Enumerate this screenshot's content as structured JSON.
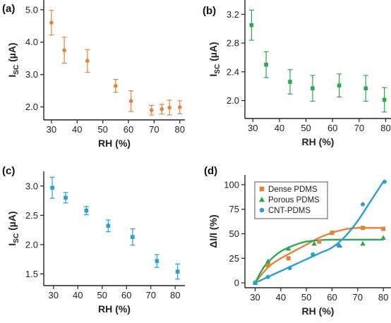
{
  "colors": {
    "orange": "#e8823a",
    "green": "#2ea84f",
    "blue": "#2a9fd6"
  },
  "chart_data": [
    {
      "panel": "(a)",
      "type": "scatter",
      "xlabel": "RH (%)",
      "ylabel_main": "I",
      "ylabel_sub": "SC",
      "ylabel_unit": " (µA)",
      "xlim": [
        27,
        82
      ],
      "ylim": [
        1.6,
        5.3
      ],
      "xticks": [
        30,
        40,
        50,
        60,
        70,
        80
      ],
      "xtick_labels": [
        "30",
        "40",
        "50",
        "60",
        "70",
        "80"
      ],
      "yticks": [
        2.0,
        3.0,
        4.0,
        5.0
      ],
      "ytick_labels": [
        "2.0",
        "3.0",
        "4.0",
        "5.0"
      ],
      "marker": "circle",
      "color": "#e8823a",
      "x": [
        30,
        35,
        44,
        55,
        61,
        69,
        73,
        76,
        80
      ],
      "y": [
        4.6,
        3.75,
        3.42,
        2.65,
        2.18,
        1.9,
        1.93,
        1.98,
        1.99
      ],
      "err": [
        0.38,
        0.4,
        0.35,
        0.2,
        0.32,
        0.15,
        0.15,
        0.23,
        0.2
      ]
    },
    {
      "panel": "(b)",
      "type": "scatter",
      "xlabel": "RH (%)",
      "ylabel_main": "I",
      "ylabel_sub": "SC",
      "ylabel_unit": " (µA)",
      "xlim": [
        27,
        82
      ],
      "ylim": [
        1.75,
        3.4
      ],
      "xticks": [
        30,
        40,
        50,
        60,
        70,
        80
      ],
      "xtick_labels": [
        "30",
        "40",
        "50",
        "60",
        "70",
        "80"
      ],
      "yticks": [
        2.0,
        2.4,
        2.8,
        3.2
      ],
      "ytick_labels": [
        "2.0",
        "2.4",
        "2.8",
        "3.2"
      ],
      "marker": "square",
      "color": "#2ea84f",
      "x": [
        29.5,
        35,
        44,
        52.5,
        62.5,
        72.5,
        79.5
      ],
      "y": [
        3.05,
        2.5,
        2.26,
        2.17,
        2.21,
        2.17,
        2.01
      ],
      "err": [
        0.21,
        0.18,
        0.17,
        0.18,
        0.16,
        0.18,
        0.17
      ]
    },
    {
      "panel": "(c)",
      "type": "scatter",
      "xlabel": "RH (%)",
      "ylabel_main": "I",
      "ylabel_sub": "SC",
      "ylabel_unit": " (µA)",
      "xlim": [
        26,
        84
      ],
      "ylim": [
        1.3,
        3.25
      ],
      "xticks": [
        30,
        40,
        50,
        60,
        70,
        80
      ],
      "xtick_labels": [
        "30",
        "40",
        "50",
        "60",
        "70",
        "80"
      ],
      "yticks": [
        1.5,
        2.0,
        2.5,
        3.0
      ],
      "ytick_labels": [
        "1.5",
        "2.0",
        "2.5",
        "3.0"
      ],
      "marker": "square",
      "color": "#2a9fd6",
      "x": [
        29.5,
        35,
        43.5,
        52.5,
        62.5,
        72.5,
        81
      ],
      "y": [
        2.97,
        2.8,
        2.58,
        2.32,
        2.13,
        1.72,
        1.54
      ],
      "err": [
        0.18,
        0.09,
        0.07,
        0.1,
        0.14,
        0.11,
        0.13
      ]
    },
    {
      "panel": "(d)",
      "type": "scatter",
      "xlabel": "RH (%)",
      "ylabel": "ΔI/I (%)",
      "xlim": [
        26,
        83
      ],
      "ylim": [
        -5,
        110
      ],
      "xticks": [
        30,
        40,
        50,
        60,
        70,
        80
      ],
      "xtick_labels": [
        "30",
        "40",
        "50",
        "60",
        "70",
        "80"
      ],
      "yticks": [
        0,
        25,
        50,
        75,
        100
      ],
      "ytick_labels": [
        "0",
        "25",
        "50",
        "75",
        "100"
      ],
      "legend": "top-left",
      "series": [
        {
          "name": "Dense PDMS",
          "marker": "square",
          "color": "#e8823a",
          "x": [
            30,
            35,
            43,
            55,
            60,
            72,
            80
          ],
          "y": [
            0,
            18,
            25,
            42,
            51,
            56,
            55
          ],
          "fit_x": [
            30,
            33,
            36,
            40,
            45,
            50,
            55,
            60,
            65,
            70,
            75,
            80
          ],
          "fit_y": [
            0,
            10,
            18,
            25,
            32,
            39,
            46,
            51,
            54.5,
            56,
            56,
            56
          ]
        },
        {
          "name": "Porous PDMS",
          "marker": "triangle",
          "color": "#2ea84f",
          "x": [
            30,
            35,
            43,
            53,
            63,
            72,
            80
          ],
          "y": [
            0,
            22,
            35,
            40,
            38,
            40,
            46
          ],
          "fit_x": [
            30,
            32,
            34,
            37,
            40,
            43,
            47,
            50,
            55,
            60,
            70,
            80
          ],
          "fit_y": [
            0,
            10,
            18,
            26,
            32,
            36,
            40,
            42,
            43.5,
            44,
            44,
            44
          ]
        },
        {
          "name": "CNT-PDMS",
          "marker": "circle",
          "color": "#2a9fd6",
          "x": [
            30,
            35,
            43.5,
            52.5,
            62.5,
            72,
            80.5
          ],
          "y": [
            0,
            6,
            15,
            29,
            38,
            80,
            103
          ],
          "fit_x": [
            30,
            35,
            40,
            45,
            50,
            55,
            60,
            65,
            70,
            75,
            80
          ],
          "fit_y": [
            0,
            6,
            12,
            18,
            24,
            30,
            36,
            47,
            63,
            83,
            103
          ]
        }
      ]
    }
  ]
}
